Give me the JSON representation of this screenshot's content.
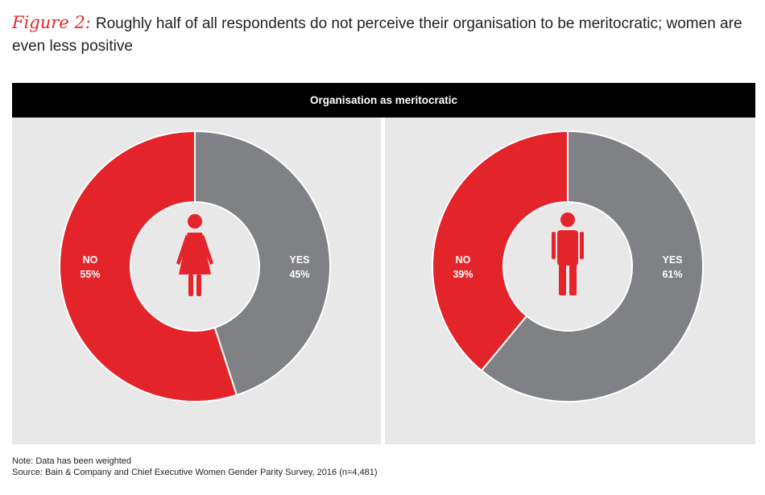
{
  "figure": {
    "label": "Figure 2:",
    "title": "Roughly half of all respondents do not perceive their organisation to be meritocratic; women are even less positive"
  },
  "header": {
    "title": "Organisation as meritocratic"
  },
  "colors": {
    "no": "#e3252b",
    "yes": "#808184",
    "panel_bg": "#e8e8e9",
    "header_bg": "#000000"
  },
  "chart_data": [
    {
      "type": "pie",
      "variant": "donut",
      "center_icon": "woman-icon",
      "slices": [
        {
          "label": "NO",
          "value": 55,
          "display": "55%",
          "color": "#e3252b"
        },
        {
          "label": "YES",
          "value": 45,
          "display": "45%",
          "color": "#808184"
        }
      ]
    },
    {
      "type": "pie",
      "variant": "donut",
      "center_icon": "man-icon",
      "slices": [
        {
          "label": "NO",
          "value": 39,
          "display": "39%",
          "color": "#e3252b"
        },
        {
          "label": "YES",
          "value": 61,
          "display": "61%",
          "color": "#808184"
        }
      ]
    }
  ],
  "notes": {
    "note": "Note: Data has been weighted",
    "source": "Source: Bain & Company and Chief Executive Women Gender Parity Survey, 2016 (n=4,481)"
  }
}
